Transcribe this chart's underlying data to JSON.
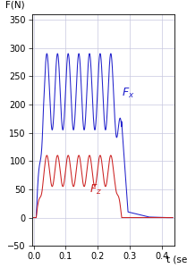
{
  "xlabel": "t (sec)",
  "ylabel": "F(N)",
  "xlim": [
    -0.005,
    0.44
  ],
  "ylim": [
    -50,
    360
  ],
  "yticks": [
    -50,
    0,
    50,
    100,
    150,
    200,
    250,
    300,
    350
  ],
  "xticks": [
    0,
    0.1,
    0.2,
    0.3,
    0.4
  ],
  "grid_color": "#c8c8e0",
  "background_color": "#ffffff",
  "fx_color": "#2222cc",
  "fz_color": "#cc2222",
  "freq": 30,
  "dt": 0.0002
}
